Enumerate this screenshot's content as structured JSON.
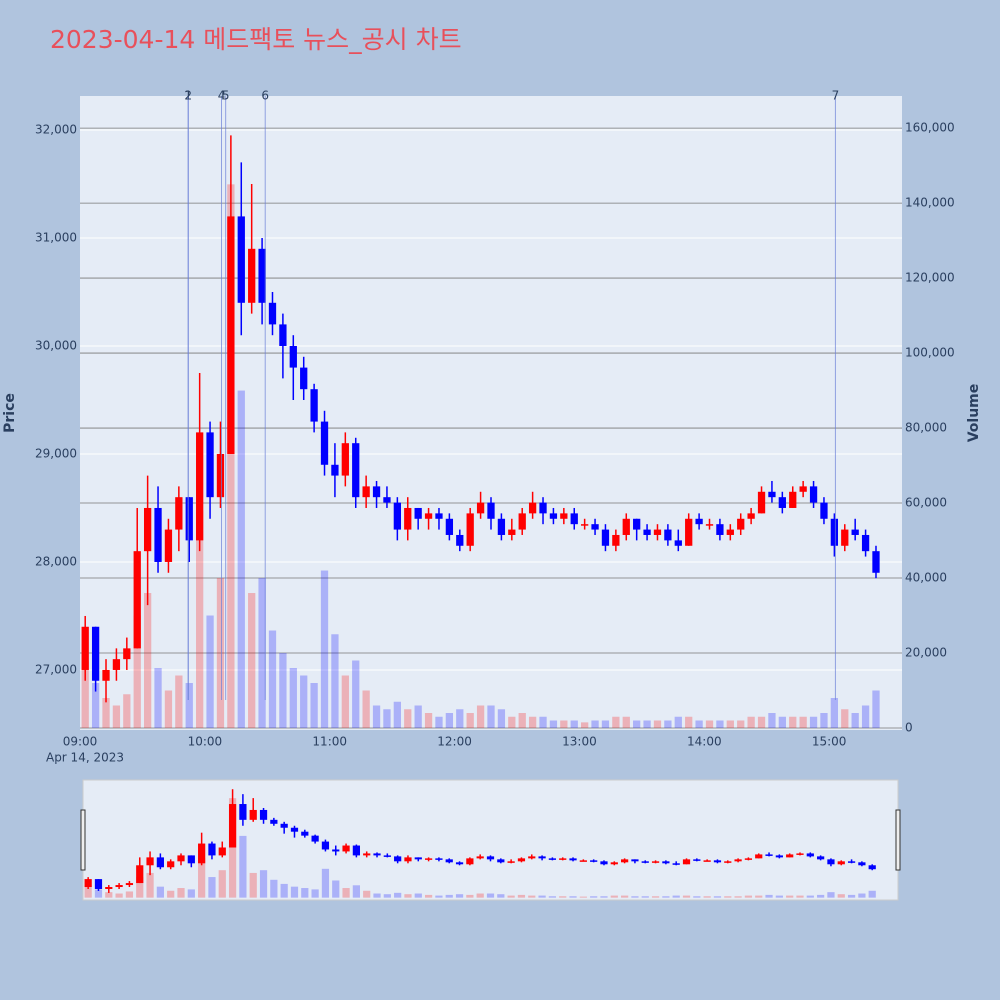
{
  "chart_data": {
    "type": "candlestick",
    "title": "2023-04-14 메드팩토 뉴스_공시 차트",
    "y_label": "Price",
    "y2_label": "Volume",
    "x_date_label": "Apr 14, 2023",
    "increasing_color": "#ff0000",
    "decreasing_color": "#0000ff",
    "x": [
      "09:00",
      "09:05",
      "09:10",
      "09:15",
      "09:20",
      "09:25",
      "09:30",
      "09:35",
      "09:40",
      "09:45",
      "09:50",
      "09:55",
      "10:00",
      "10:05",
      "10:10",
      "10:15",
      "10:20",
      "10:25",
      "10:30",
      "10:35",
      "10:40",
      "10:45",
      "10:50",
      "10:55",
      "11:00",
      "11:05",
      "11:10",
      "11:15",
      "11:20",
      "11:25",
      "11:30",
      "11:35",
      "11:40",
      "11:45",
      "11:50",
      "11:55",
      "12:00",
      "12:05",
      "12:10",
      "12:15",
      "12:20",
      "12:25",
      "12:30",
      "12:35",
      "12:40",
      "12:45",
      "12:50",
      "12:55",
      "13:00",
      "13:05",
      "13:10",
      "13:15",
      "13:20",
      "13:25",
      "13:30",
      "13:35",
      "13:40",
      "13:45",
      "13:50",
      "13:55",
      "14:00",
      "14:05",
      "14:10",
      "14:15",
      "14:20",
      "14:25",
      "14:30",
      "14:35",
      "14:40",
      "14:45",
      "14:50",
      "14:55",
      "15:00",
      "15:05",
      "15:10",
      "15:15",
      "15:20"
    ],
    "open": [
      27000,
      27400,
      26900,
      27000,
      27100,
      27200,
      28100,
      28500,
      28000,
      28300,
      28600,
      28200,
      29200,
      28600,
      29000,
      31200,
      30400,
      30900,
      30400,
      30200,
      30000,
      29800,
      29600,
      29300,
      28900,
      28800,
      29100,
      28600,
      28700,
      28600,
      28550,
      28300,
      28500,
      28400,
      28450,
      28400,
      28250,
      28150,
      28450,
      28550,
      28400,
      28250,
      28300,
      28450,
      28550,
      28450,
      28400,
      28450,
      28350,
      28350,
      28300,
      28150,
      28250,
      28400,
      28300,
      28250,
      28300,
      28200,
      28150,
      28400,
      28350,
      28350,
      28250,
      28300,
      28400,
      28450,
      28650,
      28600,
      28500,
      28650,
      28700,
      28550,
      28400,
      28150,
      28300,
      28250,
      28100
    ],
    "high": [
      27500,
      27400,
      27100,
      27200,
      27300,
      28500,
      28800,
      28700,
      28400,
      28700,
      28600,
      29750,
      29300,
      29300,
      31950,
      31700,
      31500,
      31000,
      30500,
      30300,
      30100,
      29900,
      29650,
      29400,
      29100,
      29200,
      29150,
      28800,
      28750,
      28700,
      28600,
      28600,
      28500,
      28500,
      28500,
      28450,
      28300,
      28500,
      28650,
      28600,
      28450,
      28400,
      28500,
      28650,
      28600,
      28500,
      28500,
      28500,
      28400,
      28400,
      28350,
      28300,
      28450,
      28400,
      28350,
      28350,
      28350,
      28300,
      28450,
      28450,
      28400,
      28400,
      28350,
      28450,
      28500,
      28700,
      28750,
      28650,
      28700,
      28750,
      28750,
      28600,
      28450,
      28350,
      28400,
      28300,
      28150
    ],
    "low": [
      26900,
      26800,
      26700,
      26900,
      27000,
      27200,
      27600,
      27900,
      27900,
      28100,
      28000,
      28100,
      28400,
      28500,
      29000,
      30100,
      30300,
      30200,
      30100,
      29700,
      29500,
      29500,
      29200,
      28800,
      28600,
      28700,
      28500,
      28500,
      28500,
      28500,
      28200,
      28200,
      28300,
      28300,
      28300,
      28200,
      28100,
      28100,
      28400,
      28300,
      28200,
      28200,
      28250,
      28400,
      28350,
      28350,
      28350,
      28300,
      28300,
      28250,
      28100,
      28100,
      28200,
      28200,
      28200,
      28200,
      28150,
      28100,
      28150,
      28300,
      28300,
      28200,
      28200,
      28250,
      28350,
      28450,
      28550,
      28450,
      28500,
      28600,
      28500,
      28350,
      28050,
      28100,
      28200,
      28050,
      27850
    ],
    "close": [
      27400,
      26900,
      27000,
      27100,
      27200,
      28100,
      28500,
      28000,
      28300,
      28600,
      28200,
      29200,
      28600,
      29000,
      31200,
      30400,
      30900,
      30400,
      30200,
      30000,
      29800,
      29600,
      29300,
      28900,
      28800,
      29100,
      28600,
      28700,
      28600,
      28550,
      28300,
      28500,
      28400,
      28450,
      28400,
      28250,
      28150,
      28450,
      28550,
      28400,
      28250,
      28300,
      28450,
      28550,
      28450,
      28400,
      28450,
      28350,
      28350,
      28300,
      28150,
      28250,
      28400,
      28300,
      28250,
      28300,
      28200,
      28150,
      28400,
      28350,
      28350,
      28250,
      28300,
      28400,
      28450,
      28650,
      28600,
      28500,
      28650,
      28700,
      28550,
      28400,
      28150,
      28300,
      28250,
      28100,
      27900
    ],
    "volume": [
      18000,
      12000,
      8000,
      6000,
      9000,
      30000,
      36000,
      16000,
      10000,
      14000,
      12000,
      58000,
      30000,
      40000,
      145000,
      90000,
      36000,
      40000,
      26000,
      20000,
      16000,
      14000,
      12000,
      42000,
      25000,
      14000,
      18000,
      10000,
      6000,
      5000,
      7000,
      5000,
      6000,
      4000,
      3000,
      4000,
      5000,
      4000,
      6000,
      6000,
      5000,
      3000,
      4000,
      3000,
      3000,
      2000,
      2000,
      2000,
      1500,
      2000,
      2000,
      3000,
      3000,
      2000,
      2000,
      2000,
      2000,
      3000,
      3000,
      2000,
      2000,
      2000,
      2000,
      2000,
      3000,
      3000,
      4000,
      3000,
      3000,
      3000,
      3000,
      4000,
      8000,
      5000,
      4000,
      6000,
      10000
    ],
    "xlim": [
      "09:00",
      "15:35"
    ],
    "xticks": [
      "09:00",
      "10:00",
      "11:00",
      "12:00",
      "13:00",
      "14:00",
      "15:00"
    ],
    "ylim": [
      26444,
      32315
    ],
    "yticks": [
      {
        "value": 27000,
        "label": "27,000"
      },
      {
        "value": 28000,
        "label": "28,000"
      },
      {
        "value": 29000,
        "label": "29,000"
      },
      {
        "value": 30000,
        "label": "30,000"
      },
      {
        "value": 31000,
        "label": "31,000"
      },
      {
        "value": 32000,
        "label": "32,000"
      }
    ],
    "y2lim": [
      -535,
      168562
    ],
    "y2ticks": [
      0,
      {
        "value": 20000,
        "label": "20,000"
      },
      {
        "value": 40000,
        "label": "40,000"
      },
      {
        "value": 60000,
        "label": "60,000"
      },
      {
        "value": 80000,
        "label": "80,000"
      },
      {
        "value": 100000,
        "label": "100,000"
      },
      {
        "value": 120000,
        "label": "120,000"
      },
      {
        "value": 140000,
        "label": "140,000"
      },
      {
        "value": 160000,
        "label": "160,000"
      }
    ],
    "annotations": [
      {
        "x": "09:52",
        "label": "1"
      },
      {
        "x": "09:52",
        "label": "2"
      },
      {
        "x": "10:08",
        "label": "4"
      },
      {
        "x": "10:10",
        "label": "5"
      },
      {
        "x": "10:29",
        "label": "6"
      },
      {
        "x": "15:03",
        "label": "7"
      }
    ]
  }
}
